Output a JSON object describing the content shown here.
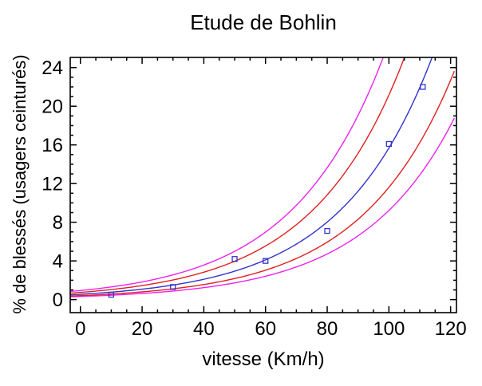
{
  "chart_data": {
    "type": "scatter",
    "title": "Etude de Bohlin",
    "xlabel": "vitesse (Km/h)",
    "ylabel": "% de blessés (usagers ceinturés)",
    "xlim": [
      -3.3,
      121.9
    ],
    "ylim": [
      -1.35,
      25.05
    ],
    "x_ticks": {
      "major": [
        0,
        20,
        40,
        60,
        80,
        100,
        120
      ],
      "minor_step": 5,
      "minor_range": [
        0,
        120
      ]
    },
    "y_ticks": {
      "major": [
        0,
        4,
        8,
        12,
        16,
        20,
        24
      ],
      "minor_step": 1,
      "minor_range": [
        0,
        24
      ]
    },
    "points": [
      [
        10,
        0.5
      ],
      [
        30,
        1.3
      ],
      [
        50,
        4.2
      ],
      [
        60,
        4.0
      ],
      [
        80,
        7.1
      ],
      [
        100,
        16.1
      ],
      [
        111,
        22.0
      ]
    ],
    "fit": {
      "model": "y = a*exp(b*x)",
      "a": 0.55,
      "b": 0.0335
    },
    "bands": {
      "inner_factor": 1.35,
      "outer_factor": 1.7
    },
    "curves": [
      {
        "name": "prediction-band-upper-outer",
        "factor_key": "outer_factor",
        "side": 1,
        "color_key": "outer_band"
      },
      {
        "name": "prediction-band-lower-outer",
        "factor_key": "outer_factor",
        "side": -1,
        "color_key": "outer_band"
      },
      {
        "name": "confidence-band-upper-inner",
        "factor_key": "inner_factor",
        "side": 1,
        "color_key": "inner_band"
      },
      {
        "name": "confidence-band-lower-inner",
        "factor_key": "inner_factor",
        "side": -1,
        "color_key": "inner_band"
      },
      {
        "name": "fit-curve",
        "factor_key": null,
        "side": 0,
        "color_key": "fit_line"
      }
    ],
    "colors": {
      "fit_line": "#3333cc",
      "point": "#3333cc",
      "inner_band": "#e02020",
      "outer_band": "#ee22ee",
      "axis": "#000000",
      "text": "#000000",
      "background": "#ffffff"
    },
    "legend": null,
    "grid": false
  }
}
